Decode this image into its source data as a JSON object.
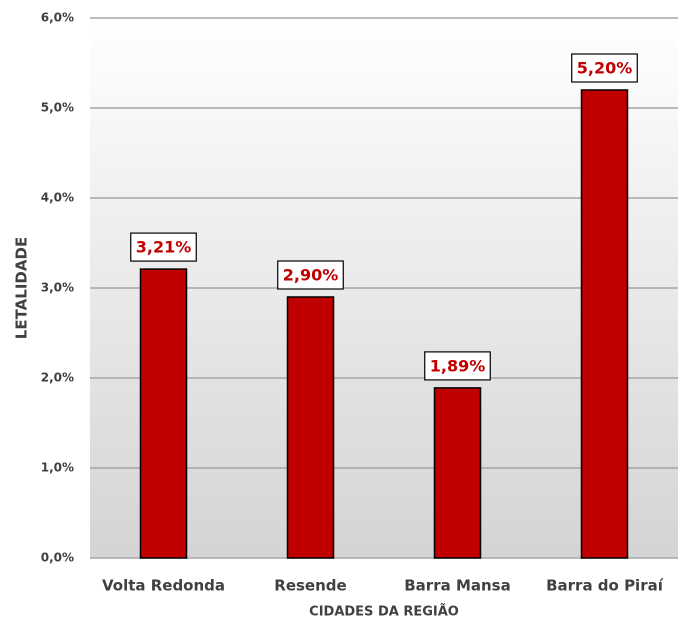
{
  "chart_data": {
    "type": "bar",
    "x_label": "CIDADES DA REGIÃO",
    "y_label": "LETALIDADE",
    "categories": [
      "Volta Redonda",
      "Resende",
      "Barra Mansa",
      "Barra do Piraí"
    ],
    "values": [
      3.21,
      2.9,
      1.89,
      5.2
    ],
    "value_labels": [
      "3,21%",
      "2,90%",
      "1,89%",
      "5,20%"
    ],
    "color": "#c00000",
    "ylim": [
      0,
      6
    ],
    "yticks": [
      {
        "value": 0,
        "label": "0,0%"
      },
      {
        "value": 1,
        "label": "1,0%"
      },
      {
        "value": 2,
        "label": "2,0%"
      },
      {
        "value": 3,
        "label": "3,0%"
      },
      {
        "value": 4,
        "label": "4,0%"
      },
      {
        "value": 5,
        "label": "5,0%"
      },
      {
        "value": 6,
        "label": "6,0%"
      }
    ],
    "grid": true
  }
}
